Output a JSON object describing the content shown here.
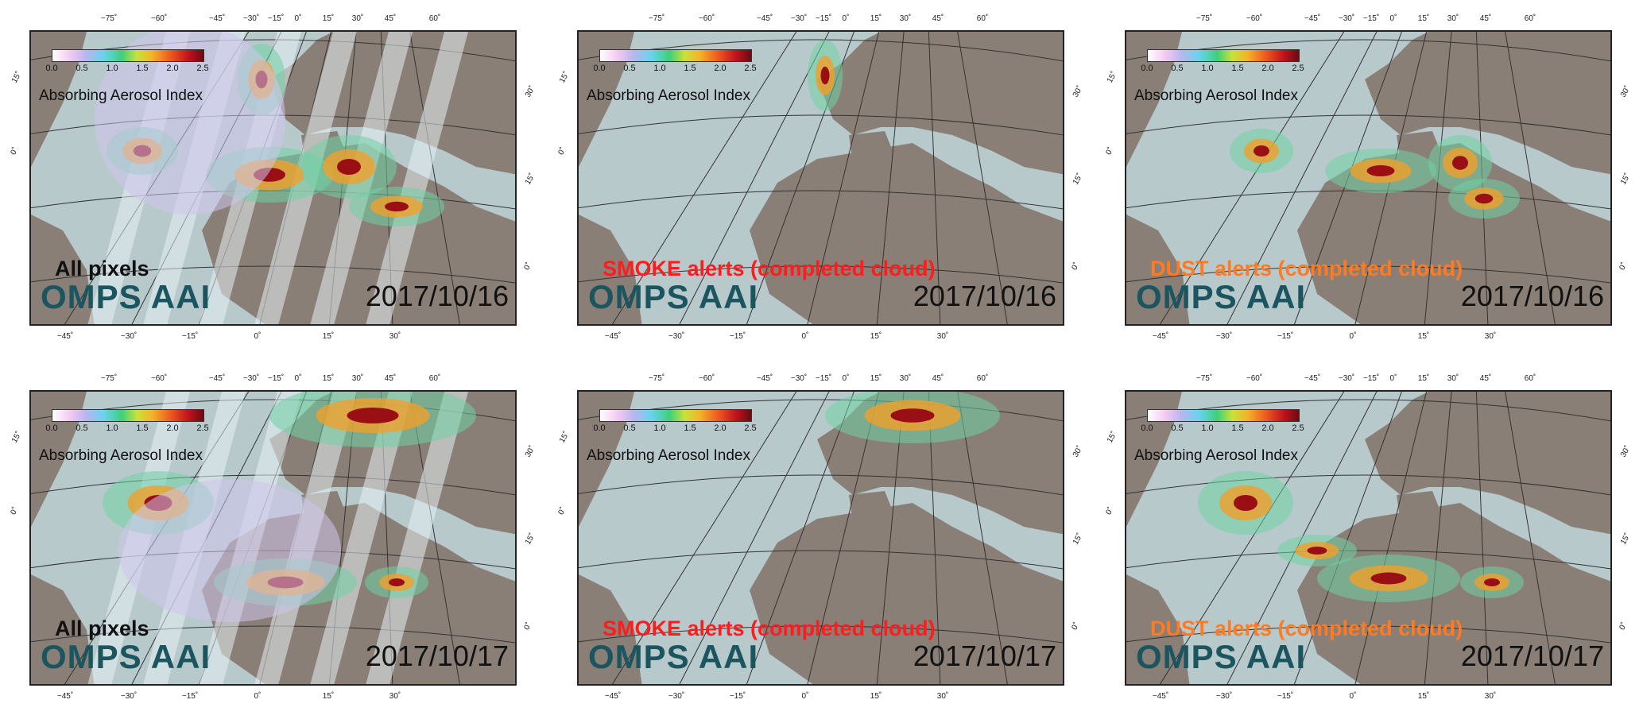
{
  "figure": {
    "panels": [
      {
        "title": "All pixels",
        "title_style": "black",
        "product": "OMPS  AAI",
        "date": "2017/10/16"
      },
      {
        "title": "SMOKE alerts (completed cloud)",
        "title_style": "red",
        "product": "OMPS  AAI",
        "date": "2017/10/16"
      },
      {
        "title": "DUST alerts (completed cloud)",
        "title_style": "orange",
        "product": "OMPS  AAI",
        "date": "2017/10/16"
      },
      {
        "title": "All pixels",
        "title_style": "black",
        "product": "OMPS  AAI",
        "date": "2017/10/17"
      },
      {
        "title": "SMOKE alerts (completed cloud)",
        "title_style": "red",
        "product": "OMPS  AAI",
        "date": "2017/10/17"
      },
      {
        "title": "DUST alerts (completed cloud)",
        "title_style": "orange",
        "product": "OMPS  AAI",
        "date": "2017/10/17"
      }
    ],
    "colorbar": {
      "label": "Absorbing Aerosol Index",
      "ticks": [
        "0.0",
        "0.5",
        "1.0",
        "1.5",
        "2.0",
        "2.5"
      ]
    },
    "top_ticks": [
      "−75˚",
      "−60˚",
      "−45˚",
      "−30˚",
      "−15˚",
      "0˚",
      "15˚",
      "30˚",
      "45˚",
      "60˚"
    ],
    "bottom_ticks": [
      "−45˚",
      "−30˚",
      "−15˚",
      "0˚",
      "15˚",
      "30˚"
    ],
    "left_ticks": [
      "15˚",
      "0˚"
    ],
    "right_ticks": [
      "30˚",
      "15˚",
      "0˚"
    ],
    "colors": {
      "ocean": "#b8c9cc",
      "land": "#8a7f76",
      "grid": "#333333",
      "rivers": "#3a78c4"
    }
  }
}
